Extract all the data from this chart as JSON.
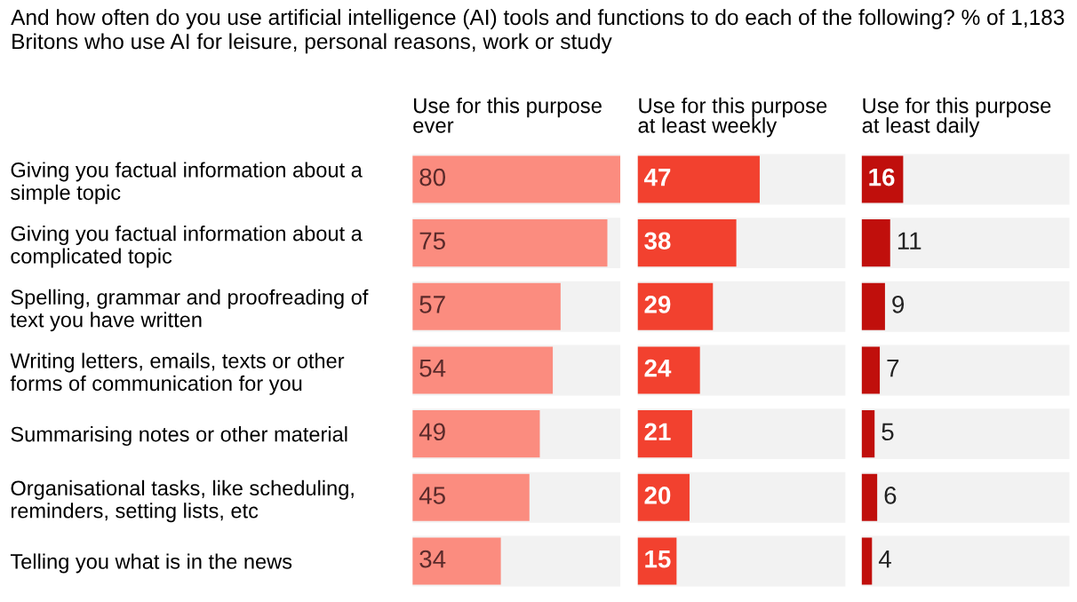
{
  "chart_data": [
    {
      "type": "bar",
      "orientation": "horizontal",
      "subtitle": "And how often do you use artificial intelligence (AI) tools and functions to do each of the following? % of 1,183 Britons who use AI for leisure, personal reasons, work or study",
      "title": "Use for this purpose\never",
      "categories": [
        "Giving you factual information about a\nsimple topic",
        "Giving you factual information about a\ncomplicated topic",
        "Spelling, grammar and proofreading of\ntext you have written",
        "Writing letters, emails, texts or other\nforms of communication for you",
        "Summarising notes or other material",
        "Organisational tasks, like scheduling,\nreminders, setting lists, etc",
        "Telling you what is in the news"
      ],
      "series": [
        {
          "color": "#fb8c7f",
          "values": [
            80,
            75,
            57,
            54,
            49,
            45,
            34
          ]
        }
      ],
      "xlim": [
        0,
        80
      ],
      "grid": "y",
      "data_labels": true,
      "tick_labels": "y"
    },
    {
      "type": "bar",
      "orientation": "horizontal",
      "title": "Use for this purpose\nat least weekly",
      "categories": [
        null,
        null,
        null,
        null,
        null,
        null,
        null
      ],
      "series": [
        {
          "color": "#f2412f",
          "values": [
            47,
            38,
            29,
            24,
            21,
            20,
            15
          ]
        }
      ],
      "xlim": [
        0,
        80
      ],
      "grid": "y",
      "data_labels": true,
      "tick_labels": false
    },
    {
      "type": "bar",
      "orientation": "horizontal",
      "title": "Use for this purpose\nat least daily",
      "categories": [
        null,
        null,
        null,
        null,
        null,
        null,
        null
      ],
      "series": [
        {
          "color": "#c00f0c",
          "values": [
            16,
            11,
            9,
            7,
            5,
            6,
            4
          ]
        }
      ],
      "xlim": [
        0,
        80
      ],
      "grid": "y",
      "data_labels": true,
      "tick_labels": false
    }
  ]
}
